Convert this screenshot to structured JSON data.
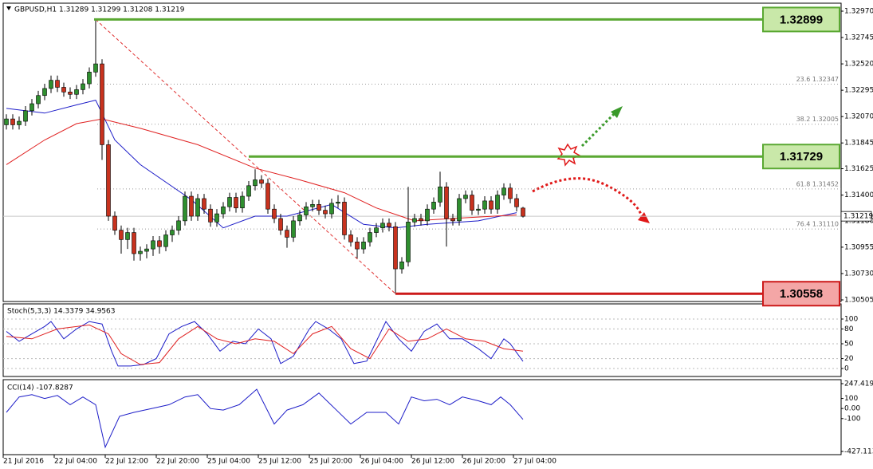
{
  "chart_data": [
    {
      "type": "candlestick",
      "title": "GBPUSD,H1  1.31289 1.31299 1.31208 1.31219",
      "xlim": [
        -0.5,
        130.875
      ],
      "ylim": [
        1.30505,
        1.3297
      ],
      "yticks": [
        {
          "value": 1.3297,
          "label": "1.32970"
        },
        {
          "value": 1.32745,
          "label": "1.32745"
        },
        {
          "value": 1.3252,
          "label": "1.32520"
        },
        {
          "value": 1.32295,
          "label": "1.32295"
        },
        {
          "value": 1.3207,
          "label": "1.32070"
        },
        {
          "value": 1.31845,
          "label": "1.31845"
        },
        {
          "value": 1.31625,
          "label": "1.31625"
        },
        {
          "value": 1.314,
          "label": "1.31400"
        },
        {
          "value": 1.3118,
          "label": "1.31180"
        },
        {
          "value": 1.30955,
          "label": "1.30955"
        },
        {
          "value": 1.3073,
          "label": "1.30730"
        },
        {
          "value": 1.30505,
          "label": "1.30505"
        }
      ],
      "up_color": "#2f8f2f",
      "down_color": "#c8321e",
      "candles": [
        [
          1.32,
          1.3209,
          1.3196,
          1.3205
        ],
        [
          1.3205,
          1.3209,
          1.3196,
          1.32
        ],
        [
          1.32,
          1.3207,
          1.3196,
          1.3203
        ],
        [
          1.3203,
          1.3216,
          1.3199,
          1.3212
        ],
        [
          1.3212,
          1.3222,
          1.3208,
          1.3218
        ],
        [
          1.3218,
          1.3229,
          1.3214,
          1.3225
        ],
        [
          1.3225,
          1.3235,
          1.3221,
          1.3231
        ],
        [
          1.3231,
          1.3242,
          1.3227,
          1.3238
        ],
        [
          1.3238,
          1.3242,
          1.3228,
          1.3232
        ],
        [
          1.3232,
          1.3236,
          1.3224,
          1.3228
        ],
        [
          1.3228,
          1.3232,
          1.3222,
          1.3226
        ],
        [
          1.3226,
          1.3234,
          1.3222,
          1.323
        ],
        [
          1.323,
          1.3239,
          1.3226,
          1.3235
        ],
        [
          1.3235,
          1.3249,
          1.3231,
          1.3245
        ],
        [
          1.3245,
          1.32899,
          1.3241,
          1.3252
        ],
        [
          1.3252,
          1.3256,
          1.317,
          1.3183
        ],
        [
          1.3183,
          1.3187,
          1.3118,
          1.3122
        ],
        [
          1.3122,
          1.3126,
          1.3106,
          1.311
        ],
        [
          1.311,
          1.3114,
          1.309,
          1.3102
        ],
        [
          1.3102,
          1.3112,
          1.3094,
          1.3108
        ],
        [
          1.3108,
          1.3112,
          1.3084,
          1.309
        ],
        [
          1.309,
          1.3096,
          1.3084,
          1.3092
        ],
        [
          1.3092,
          1.3098,
          1.3086,
          1.3094
        ],
        [
          1.3094,
          1.3105,
          1.3088,
          1.3101
        ],
        [
          1.3101,
          1.3105,
          1.309,
          1.3096
        ],
        [
          1.3096,
          1.311,
          1.3092,
          1.3106
        ],
        [
          1.3106,
          1.3114,
          1.31,
          1.311
        ],
        [
          1.311,
          1.3122,
          1.3106,
          1.3118
        ],
        [
          1.3118,
          1.3143,
          1.3114,
          1.3139
        ],
        [
          1.3139,
          1.3143,
          1.3118,
          1.3122
        ],
        [
          1.3122,
          1.3141,
          1.3118,
          1.3137
        ],
        [
          1.3137,
          1.3141,
          1.3124,
          1.3128
        ],
        [
          1.3128,
          1.3132,
          1.3113,
          1.3117
        ],
        [
          1.3117,
          1.3128,
          1.3113,
          1.3124
        ],
        [
          1.3124,
          1.3134,
          1.312,
          1.313
        ],
        [
          1.313,
          1.3142,
          1.3126,
          1.3138
        ],
        [
          1.3138,
          1.3142,
          1.3125,
          1.3129
        ],
        [
          1.3129,
          1.3143,
          1.3125,
          1.3139
        ],
        [
          1.3139,
          1.3152,
          1.3135,
          1.3148
        ],
        [
          1.3148,
          1.3162,
          1.3144,
          1.3153
        ],
        [
          1.3153,
          1.3157,
          1.3146,
          1.315
        ],
        [
          1.315,
          1.3154,
          1.3124,
          1.3128
        ],
        [
          1.3128,
          1.3132,
          1.3116,
          1.312
        ],
        [
          1.312,
          1.3124,
          1.3106,
          1.311
        ],
        [
          1.311,
          1.3114,
          1.3095,
          1.3104
        ],
        [
          1.3104,
          1.3122,
          1.31,
          1.3118
        ],
        [
          1.3118,
          1.3127,
          1.3114,
          1.3123
        ],
        [
          1.3123,
          1.3134,
          1.3119,
          1.313
        ],
        [
          1.313,
          1.3136,
          1.3126,
          1.3132
        ],
        [
          1.3132,
          1.3136,
          1.3123,
          1.3127
        ],
        [
          1.3127,
          1.3131,
          1.312,
          1.3124
        ],
        [
          1.3124,
          1.3137,
          1.312,
          1.3133
        ],
        [
          1.3133,
          1.314,
          1.3129,
          1.3134
        ],
        [
          1.3134,
          1.3138,
          1.3102,
          1.3106
        ],
        [
          1.3106,
          1.311,
          1.3096,
          1.31
        ],
        [
          1.31,
          1.3104,
          1.3086,
          1.3094
        ],
        [
          1.3094,
          1.3104,
          1.309,
          1.31
        ],
        [
          1.31,
          1.3112,
          1.3096,
          1.3108
        ],
        [
          1.3108,
          1.3116,
          1.3104,
          1.3112
        ],
        [
          1.3112,
          1.312,
          1.3108,
          1.3116
        ],
        [
          1.3116,
          1.312,
          1.3109,
          1.3113
        ],
        [
          1.3113,
          1.3117,
          1.30558,
          1.3077
        ],
        [
          1.3077,
          1.3087,
          1.3073,
          1.3083
        ],
        [
          1.3083,
          1.3147,
          1.3079,
          1.3117
        ],
        [
          1.3117,
          1.3124,
          1.3113,
          1.312
        ],
        [
          1.312,
          1.3124,
          1.3114,
          1.3118
        ],
        [
          1.3118,
          1.3132,
          1.3114,
          1.3128
        ],
        [
          1.3128,
          1.3138,
          1.3124,
          1.3134
        ],
        [
          1.3134,
          1.316,
          1.313,
          1.3147
        ],
        [
          1.3147,
          1.3151,
          1.3096,
          1.312
        ],
        [
          1.312,
          1.3124,
          1.3114,
          1.3118
        ],
        [
          1.3118,
          1.3141,
          1.3114,
          1.3137
        ],
        [
          1.3137,
          1.3144,
          1.3133,
          1.314
        ],
        [
          1.314,
          1.3144,
          1.3123,
          1.3127
        ],
        [
          1.3127,
          1.3132,
          1.3123,
          1.3128
        ],
        [
          1.3128,
          1.3139,
          1.3124,
          1.3135
        ],
        [
          1.3135,
          1.3139,
          1.3124,
          1.3128
        ],
        [
          1.3128,
          1.3144,
          1.3124,
          1.314
        ],
        [
          1.314,
          1.315,
          1.3136,
          1.3146
        ],
        [
          1.3146,
          1.315,
          1.3133,
          1.3137
        ],
        [
          1.3137,
          1.3141,
          1.3126,
          1.313
        ],
        [
          1.31289,
          1.31299,
          1.31208,
          1.31219
        ]
      ],
      "series": [
        {
          "color": "#1c1cc8",
          "x": [
            0,
            6,
            11,
            14,
            17,
            21,
            29,
            34,
            39,
            44,
            51,
            56,
            61,
            66,
            74,
            80
          ],
          "values": [
            1.3214,
            1.321,
            1.3217,
            1.3221,
            1.3187,
            1.3166,
            1.3136,
            1.3112,
            1.3122,
            1.3122,
            1.3132,
            1.3115,
            1.3112,
            1.3115,
            1.3118,
            1.3125
          ]
        },
        {
          "color": "#e02020",
          "x": [
            0,
            6,
            11,
            15,
            21,
            30,
            39,
            46,
            53,
            58,
            64,
            70,
            80
          ],
          "values": [
            1.3166,
            1.3187,
            1.3201,
            1.3205,
            1.3197,
            1.3183,
            1.3163,
            1.3153,
            1.3142,
            1.3129,
            1.3118,
            1.312,
            1.3123
          ]
        }
      ],
      "fib_levels": [
        {
          "value": 1.32347,
          "label": "23.6  1.32347"
        },
        {
          "value": 1.32005,
          "label": "38.2  1.32005"
        },
        {
          "value": 1.31452,
          "label": "61.8  1.31452"
        },
        {
          "value": 1.3111,
          "label": "76.4  1.31110"
        }
      ],
      "levels": [
        1.32899,
        1.31729,
        1.30558
      ],
      "level_colors": [
        "#5aa832",
        "#5aa832",
        "#cc1a1a"
      ],
      "level_fills": [
        "#c9e8a9",
        "#c9e8a9",
        "#f4a6a6"
      ]
    },
    {
      "type": "line",
      "title": "Stoch(5,3,3) 14.3379 34.9563",
      "xlim": [
        -0.5,
        130.875
      ],
      "ylim": [
        0,
        100
      ],
      "yticks": [
        100,
        80,
        50,
        20,
        0
      ],
      "series": [
        {
          "color": "#1c1cc8",
          "x": [
            0,
            2,
            4,
            6,
            7,
            9,
            11,
            13,
            15,
            16.5,
            17.5,
            19.5,
            21.5,
            23.5,
            25.5,
            27.5,
            29.5,
            31.5,
            33.5,
            35.5,
            37.5,
            39.5,
            41.5,
            43,
            45,
            47.5,
            48.5,
            50.5,
            52.5,
            54.5,
            56.5,
            59.5,
            61.5,
            63.5,
            65.5,
            67.5,
            69.5,
            71.5,
            74,
            76,
            78,
            79,
            81
          ],
          "values": [
            75,
            55,
            70,
            85,
            95,
            60,
            80,
            95,
            90,
            35,
            5,
            5,
            8,
            20,
            70,
            85,
            95,
            70,
            35,
            55,
            50,
            80,
            60,
            10,
            25,
            80,
            95,
            80,
            60,
            10,
            15,
            95,
            60,
            35,
            75,
            90,
            60,
            60,
            40,
            20,
            60,
            50,
            14.3379
          ]
        },
        {
          "color": "#e02020",
          "x": [
            0,
            4,
            8,
            13,
            16,
            18,
            21,
            24,
            27,
            30,
            33,
            36,
            39,
            42,
            45,
            48,
            51,
            54,
            57,
            60,
            63,
            66,
            69,
            72,
            75,
            78,
            81
          ],
          "values": [
            65,
            60,
            80,
            88,
            70,
            30,
            8,
            12,
            60,
            85,
            60,
            50,
            60,
            55,
            30,
            70,
            85,
            40,
            20,
            80,
            55,
            60,
            80,
            60,
            55,
            40,
            34.9563
          ]
        }
      ]
    },
    {
      "type": "line",
      "title": "CCI(14) -107.8287",
      "xlim": [
        -0.5,
        130.875
      ],
      "ylim": [
        -427.1136,
        247.4195
      ],
      "yticks": [
        247.4195,
        100,
        {
          "value": 0,
          "label": "0.00"
        },
        -100,
        -427.1136
      ],
      "series": [
        {
          "color": "#1c1cc8",
          "x": [
            0,
            2,
            4,
            6,
            8,
            10,
            12,
            14,
            15.5,
            17.75,
            20,
            22.75,
            25.5,
            28,
            30,
            32,
            34,
            36.5,
            39.25,
            42,
            44,
            46.5,
            49,
            51.5,
            54,
            56.5,
            59.5,
            61.5,
            63.5,
            65.5,
            67.5,
            69.5,
            71.5,
            74,
            76,
            77.5,
            79,
            81
          ],
          "values": [
            -38,
            115,
            138,
            100,
            130,
            38,
            115,
            38,
            -385,
            -77,
            -38,
            0,
            38,
            115,
            138,
            0,
            -15,
            38,
            192,
            -154,
            -15,
            38,
            154,
            0,
            -154,
            -38,
            -38,
            -154,
            115,
            77,
            92,
            38,
            115,
            77,
            38,
            115,
            38,
            -107.8287
          ]
        }
      ],
      "xticks": [
        {
          "value": 0,
          "label": "21 Jul 2016"
        },
        {
          "value": 8,
          "label": "22 Jul 04:00"
        },
        {
          "value": 16,
          "label": "22 Jul 12:00"
        },
        {
          "value": 24,
          "label": "22 Jul 20:00"
        },
        {
          "value": 32,
          "label": "25 Jul 04:00"
        },
        {
          "value": 40,
          "label": "25 Jul 12:00"
        },
        {
          "value": 48,
          "label": "25 Jul 20:00"
        },
        {
          "value": 56,
          "label": "26 Jul 04:00"
        },
        {
          "value": 64,
          "label": "26 Jul 12:00"
        },
        {
          "value": 72,
          "label": "26 Jul 20:00"
        },
        {
          "value": 80,
          "label": "27 Jul 04:00"
        }
      ]
    }
  ]
}
